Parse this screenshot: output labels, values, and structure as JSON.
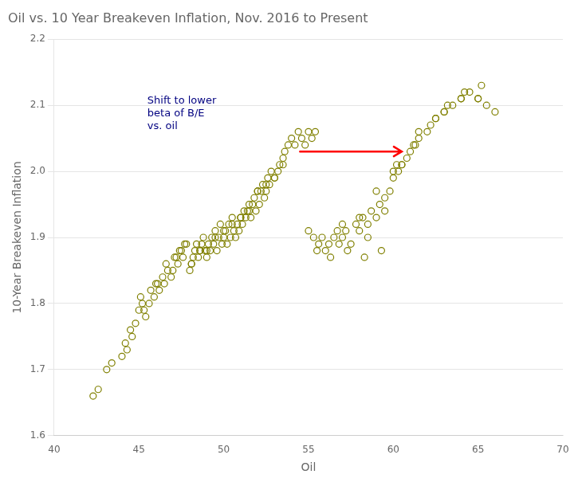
{
  "chart_data": {
    "type": "scatter",
    "title": "Oil vs. 10 Year Breakeven Inflation, Nov. 2016 to Present",
    "xlabel": "Oil",
    "ylabel": "10-Year Breakeven Inflation",
    "xlim": [
      40,
      70
    ],
    "ylim": [
      1.6,
      2.2
    ],
    "xticks": [
      40,
      45,
      50,
      55,
      60,
      65,
      70
    ],
    "yticks": [
      1.6,
      1.7,
      1.8,
      1.9,
      {
        "value": 2.0,
        "label": "2.0"
      },
      2.1,
      2.2
    ],
    "grid": "y",
    "series": [
      {
        "color": "#808000",
        "marker": "open circle",
        "x": [
          42.3,
          42.6,
          43.1,
          43.4,
          44.0,
          44.3,
          44.6,
          44.8,
          45.0,
          45.2,
          45.4,
          45.6,
          45.7,
          45.9,
          46.0,
          46.2,
          46.4,
          46.5,
          46.7,
          46.9,
          47.0,
          47.2,
          47.3,
          47.5,
          47.6,
          47.8,
          48.0,
          48.1,
          48.2,
          48.3,
          48.4,
          48.5,
          48.6,
          48.7,
          48.8,
          48.9,
          49.0,
          49.1,
          49.2,
          49.3,
          49.4,
          49.5,
          49.6,
          49.7,
          49.8,
          49.9,
          50.0,
          50.1,
          50.2,
          50.3,
          50.4,
          50.5,
          50.6,
          50.7,
          50.8,
          50.9,
          51.0,
          51.1,
          51.2,
          51.3,
          51.4,
          51.5,
          51.6,
          51.7,
          51.8,
          51.9,
          52.0,
          52.1,
          52.2,
          52.3,
          52.4,
          52.5,
          52.6,
          52.7,
          52.8,
          53.0,
          53.2,
          53.3,
          53.5,
          53.6,
          53.8,
          54.0,
          54.2,
          54.4,
          54.6,
          54.8,
          55.0,
          55.2,
          55.4,
          44.2,
          44.5,
          45.1,
          45.3,
          46.1,
          46.6,
          47.1,
          47.4,
          47.7,
          48.1,
          48.6,
          49.0,
          49.5,
          50.0,
          50.5,
          51.0,
          51.5,
          52.0,
          52.5,
          53.0,
          53.5
        ],
        "values": [
          1.66,
          1.67,
          1.7,
          1.71,
          1.72,
          1.73,
          1.75,
          1.77,
          1.79,
          1.8,
          1.78,
          1.8,
          1.82,
          1.81,
          1.83,
          1.82,
          1.84,
          1.83,
          1.85,
          1.84,
          1.85,
          1.87,
          1.86,
          1.88,
          1.87,
          1.89,
          1.85,
          1.86,
          1.87,
          1.88,
          1.89,
          1.87,
          1.88,
          1.89,
          1.9,
          1.88,
          1.87,
          1.89,
          1.88,
          1.9,
          1.89,
          1.91,
          1.88,
          1.9,
          1.92,
          1.89,
          1.9,
          1.91,
          1.89,
          1.92,
          1.9,
          1.93,
          1.91,
          1.9,
          1.92,
          1.91,
          1.93,
          1.92,
          1.94,
          1.93,
          1.94,
          1.95,
          1.93,
          1.95,
          1.96,
          1.94,
          1.97,
          1.95,
          1.97,
          1.98,
          1.96,
          1.97,
          1.99,
          1.98,
          2.0,
          1.99,
          2.0,
          2.01,
          2.02,
          2.03,
          2.04,
          2.05,
          2.04,
          2.06,
          2.05,
          2.04,
          2.06,
          2.05,
          2.06,
          1.74,
          1.76,
          1.81,
          1.79,
          1.83,
          1.86,
          1.87,
          1.88,
          1.89,
          1.86,
          1.88,
          1.88,
          1.9,
          1.91,
          1.92,
          1.93,
          1.94,
          1.97,
          1.98,
          1.99,
          2.01
        ]
      },
      {
        "color": "#808000",
        "marker": "open circle",
        "x": [
          55.0,
          55.3,
          55.6,
          55.8,
          56.0,
          56.2,
          56.5,
          56.7,
          57.0,
          57.2,
          57.5,
          57.8,
          58.0,
          58.2,
          58.5,
          58.7,
          59.0,
          59.2,
          59.5,
          59.8,
          60.0,
          60.3,
          60.5,
          60.8,
          61.0,
          61.3,
          61.5,
          62.0,
          62.5,
          63.0,
          63.5,
          64.0,
          64.5,
          65.0,
          65.5,
          66.0,
          56.3,
          57.3,
          58.3,
          59.3,
          60.0,
          60.5,
          61.5,
          62.5,
          63.2,
          64.2,
          65.2,
          55.5,
          56.8,
          58.5,
          59.5,
          60.2,
          61.2,
          62.2,
          63.0,
          64.0,
          65.0,
          57.0,
          58.0,
          59.0
        ],
        "values": [
          1.91,
          1.9,
          1.89,
          1.9,
          1.88,
          1.89,
          1.9,
          1.91,
          1.9,
          1.91,
          1.89,
          1.92,
          1.91,
          1.93,
          1.92,
          1.94,
          1.93,
          1.95,
          1.96,
          1.97,
          1.99,
          2.0,
          2.01,
          2.02,
          2.03,
          2.04,
          2.05,
          2.06,
          2.08,
          2.09,
          2.1,
          2.11,
          2.12,
          2.11,
          2.1,
          2.09,
          1.87,
          1.88,
          1.87,
          1.88,
          2.0,
          2.01,
          2.06,
          2.08,
          2.1,
          2.12,
          2.13,
          1.88,
          1.89,
          1.9,
          1.94,
          2.01,
          2.04,
          2.07,
          2.09,
          2.11,
          2.11,
          1.92,
          1.93,
          1.97
        ]
      }
    ],
    "annotations": [
      {
        "text": "Shift to lower\nbeta of B/E\nvs. oil",
        "x": 45.5,
        "y": 2.115,
        "color": "#000080",
        "arrow": {
          "x": [
            54.5,
            60.5
          ],
          "y": 2.03,
          "color": "red"
        }
      }
    ]
  }
}
